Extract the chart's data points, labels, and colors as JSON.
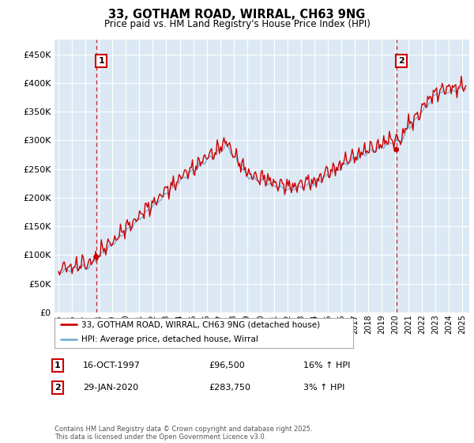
{
  "title": "33, GOTHAM ROAD, WIRRAL, CH63 9NG",
  "subtitle": "Price paid vs. HM Land Registry's House Price Index (HPI)",
  "legend_line1": "33, GOTHAM ROAD, WIRRAL, CH63 9NG (detached house)",
  "legend_line2": "HPI: Average price, detached house, Wirral",
  "annotation1_date": "16-OCT-1997",
  "annotation1_price": "£96,500",
  "annotation1_hpi": "16% ↑ HPI",
  "annotation1_price_val": 96500,
  "annotation1_year": 1997.79,
  "annotation2_date": "29-JAN-2020",
  "annotation2_price": "£283,750",
  "annotation2_hpi": "3% ↑ HPI",
  "annotation2_price_val": 283750,
  "annotation2_year": 2020.08,
  "footer": "Contains HM Land Registry data © Crown copyright and database right 2025.\nThis data is licensed under the Open Government Licence v3.0.",
  "hpi_color": "#7bafd4",
  "price_color": "#cc0000",
  "annotation_color": "#cc0000",
  "chart_bg_color": "#dce9f5",
  "ylim": [
    0,
    475000
  ],
  "yticks": [
    0,
    50000,
    100000,
    150000,
    200000,
    250000,
    300000,
    350000,
    400000,
    450000
  ],
  "background_color": "#ffffff",
  "grid_color": "#ffffff"
}
